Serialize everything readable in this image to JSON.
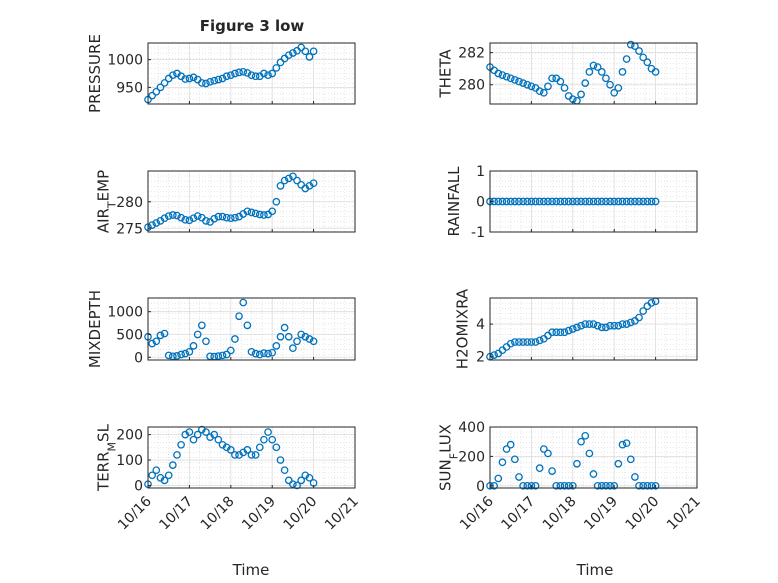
{
  "figure": {
    "title": "Figure 3 low",
    "xlabel": "Time",
    "marker_color": "#0072BD",
    "x_ticks": [
      "10/16",
      "10/17",
      "10/18",
      "10/19",
      "10/20",
      "10/21"
    ]
  },
  "chart_data": [
    {
      "type": "scatter",
      "ylabel": "PRESSURE",
      "ylim": [
        920,
        1030
      ],
      "yticks": [
        950,
        1000
      ],
      "grid": true,
      "x": [
        16.0,
        16.1,
        16.2,
        16.3,
        16.4,
        16.5,
        16.6,
        16.7,
        16.8,
        16.9,
        17.0,
        17.1,
        17.2,
        17.3,
        17.4,
        17.5,
        17.6,
        17.7,
        17.8,
        17.9,
        18.0,
        18.1,
        18.2,
        18.3,
        18.4,
        18.5,
        18.6,
        18.7,
        18.8,
        18.9,
        19.0,
        19.1,
        19.2,
        19.3,
        19.4,
        19.5,
        19.6,
        19.7,
        19.8,
        19.9,
        20.0
      ],
      "values": [
        928,
        935,
        942,
        950,
        958,
        966,
        972,
        975,
        970,
        965,
        966,
        968,
        964,
        958,
        957,
        960,
        962,
        964,
        966,
        970,
        972,
        975,
        977,
        978,
        976,
        972,
        970,
        970,
        975,
        972,
        975,
        985,
        995,
        1002,
        1008,
        1012,
        1016,
        1022,
        1015,
        1005,
        1015
      ]
    },
    {
      "type": "scatter",
      "ylabel": "THETA",
      "ylim": [
        278.8,
        282.6
      ],
      "yticks": [
        280,
        282
      ],
      "grid": true,
      "x": [
        16.0,
        16.1,
        16.2,
        16.3,
        16.4,
        16.5,
        16.6,
        16.7,
        16.8,
        16.9,
        17.0,
        17.1,
        17.2,
        17.3,
        17.4,
        17.5,
        17.6,
        17.7,
        17.8,
        17.9,
        18.0,
        18.1,
        18.2,
        18.3,
        18.4,
        18.5,
        18.6,
        18.7,
        18.8,
        18.9,
        19.0,
        19.1,
        19.2,
        19.3,
        19.4,
        19.5,
        19.6,
        19.7,
        19.8,
        19.9,
        20.0
      ],
      "values": [
        281.1,
        280.9,
        280.7,
        280.6,
        280.5,
        280.4,
        280.3,
        280.2,
        280.1,
        280.0,
        279.9,
        279.8,
        279.6,
        279.5,
        279.9,
        280.4,
        280.4,
        280.2,
        279.8,
        279.3,
        279.1,
        279.0,
        279.4,
        280.1,
        280.8,
        281.2,
        281.1,
        280.8,
        280.4,
        280.0,
        279.5,
        279.8,
        280.8,
        281.6,
        282.5,
        282.4,
        282.1,
        281.7,
        281.4,
        281.0,
        280.8
      ]
    },
    {
      "type": "scatter",
      "ylabel": "AIR_TEMP",
      "ylim": [
        274.3,
        285.8
      ],
      "yticks": [
        275,
        280
      ],
      "grid": true,
      "x": [
        16.0,
        16.1,
        16.2,
        16.3,
        16.4,
        16.5,
        16.6,
        16.7,
        16.8,
        16.9,
        17.0,
        17.1,
        17.2,
        17.3,
        17.4,
        17.5,
        17.6,
        17.7,
        17.8,
        17.9,
        18.0,
        18.1,
        18.2,
        18.3,
        18.4,
        18.5,
        18.6,
        18.7,
        18.8,
        18.9,
        19.0,
        19.1,
        19.2,
        19.3,
        19.4,
        19.5,
        19.6,
        19.7,
        19.8,
        19.9,
        20.0
      ],
      "values": [
        275.2,
        275.6,
        276.0,
        276.4,
        276.9,
        277.3,
        277.5,
        277.4,
        277.0,
        276.6,
        276.5,
        276.9,
        277.3,
        277.0,
        276.4,
        276.2,
        276.8,
        277.2,
        277.2,
        277.0,
        276.9,
        277.0,
        277.2,
        277.7,
        278.2,
        278.0,
        277.8,
        277.6,
        277.5,
        277.6,
        278.2,
        280.0,
        283.0,
        284.0,
        284.4,
        284.8,
        284.0,
        283.2,
        282.5,
        283.0,
        283.5
      ]
    },
    {
      "type": "scatter",
      "ylabel": "RAINFALL",
      "ylim": [
        -1,
        1
      ],
      "yticks": [
        -1,
        0,
        1
      ],
      "grid": true,
      "x": [
        16.0,
        16.1,
        16.2,
        16.3,
        16.4,
        16.5,
        16.6,
        16.7,
        16.8,
        16.9,
        17.0,
        17.1,
        17.2,
        17.3,
        17.4,
        17.5,
        17.6,
        17.7,
        17.8,
        17.9,
        18.0,
        18.1,
        18.2,
        18.3,
        18.4,
        18.5,
        18.6,
        18.7,
        18.8,
        18.9,
        19.0,
        19.1,
        19.2,
        19.3,
        19.4,
        19.5,
        19.6,
        19.7,
        19.8,
        19.9,
        20.0
      ],
      "values": [
        0,
        0,
        0,
        0,
        0,
        0,
        0,
        0,
        0,
        0,
        0,
        0,
        0,
        0,
        0,
        0,
        0,
        0,
        0,
        0,
        0,
        0,
        0,
        0,
        0,
        0,
        0,
        0,
        0,
        0,
        0,
        0,
        0,
        0,
        0,
        0,
        0,
        0,
        0,
        0,
        0
      ]
    },
    {
      "type": "scatter",
      "ylabel": "MIXDEPTH",
      "ylim": [
        -60,
        1300
      ],
      "yticks": [
        0,
        500,
        1000
      ],
      "grid": true,
      "x": [
        16.0,
        16.1,
        16.2,
        16.3,
        16.4,
        16.5,
        16.6,
        16.7,
        16.8,
        16.9,
        17.0,
        17.1,
        17.2,
        17.3,
        17.4,
        17.5,
        17.6,
        17.7,
        17.8,
        17.9,
        18.0,
        18.1,
        18.2,
        18.3,
        18.4,
        18.5,
        18.6,
        18.7,
        18.8,
        18.9,
        19.0,
        19.1,
        19.2,
        19.3,
        19.4,
        19.5,
        19.6,
        19.7,
        19.8,
        19.9,
        20.0
      ],
      "values": [
        450,
        300,
        350,
        480,
        520,
        40,
        20,
        30,
        60,
        80,
        120,
        250,
        500,
        700,
        350,
        20,
        15,
        25,
        40,
        60,
        150,
        400,
        900,
        1200,
        700,
        120,
        80,
        60,
        90,
        80,
        100,
        250,
        450,
        650,
        450,
        200,
        350,
        500,
        450,
        400,
        350
      ]
    },
    {
      "type": "scatter",
      "ylabel": "H2OMIXRA",
      "ylim": [
        1.8,
        5.6
      ],
      "yticks": [
        2,
        4
      ],
      "grid": true,
      "x": [
        16.0,
        16.1,
        16.2,
        16.3,
        16.4,
        16.5,
        16.6,
        16.7,
        16.8,
        16.9,
        17.0,
        17.1,
        17.2,
        17.3,
        17.4,
        17.5,
        17.6,
        17.7,
        17.8,
        17.9,
        18.0,
        18.1,
        18.2,
        18.3,
        18.4,
        18.5,
        18.6,
        18.7,
        18.8,
        18.9,
        19.0,
        19.1,
        19.2,
        19.3,
        19.4,
        19.5,
        19.6,
        19.7,
        19.8,
        19.9,
        20.0
      ],
      "values": [
        2.0,
        2.1,
        2.2,
        2.4,
        2.6,
        2.8,
        2.9,
        2.9,
        2.9,
        2.9,
        2.9,
        2.9,
        3.0,
        3.1,
        3.3,
        3.5,
        3.5,
        3.5,
        3.5,
        3.6,
        3.7,
        3.8,
        3.9,
        4.0,
        4.0,
        4.0,
        3.9,
        3.8,
        3.8,
        3.9,
        3.9,
        3.9,
        4.0,
        4.0,
        4.1,
        4.2,
        4.4,
        4.8,
        5.1,
        5.3,
        5.4
      ]
    },
    {
      "type": "scatter",
      "ylabel": "TERR_MSL",
      "ylim": [
        -10,
        230
      ],
      "yticks": [
        0,
        100,
        200
      ],
      "grid": true,
      "x": [
        16.0,
        16.1,
        16.2,
        16.3,
        16.4,
        16.5,
        16.6,
        16.7,
        16.8,
        16.9,
        17.0,
        17.1,
        17.2,
        17.3,
        17.4,
        17.5,
        17.6,
        17.7,
        17.8,
        17.9,
        18.0,
        18.1,
        18.2,
        18.3,
        18.4,
        18.5,
        18.6,
        18.7,
        18.8,
        18.9,
        19.0,
        19.1,
        19.2,
        19.3,
        19.4,
        19.5,
        19.6,
        19.7,
        19.8,
        19.9,
        20.0
      ],
      "values": [
        5,
        40,
        60,
        30,
        20,
        40,
        80,
        120,
        160,
        200,
        210,
        180,
        200,
        220,
        210,
        190,
        200,
        180,
        160,
        150,
        140,
        120,
        120,
        130,
        140,
        120,
        120,
        150,
        180,
        210,
        180,
        150,
        100,
        60,
        20,
        5,
        0,
        20,
        40,
        30,
        10
      ]
    },
    {
      "type": "scatter",
      "ylabel": "SUN_FLUX",
      "ylim": [
        -15,
        400
      ],
      "yticks": [
        0,
        200,
        400
      ],
      "grid": true,
      "x": [
        16.0,
        16.1,
        16.2,
        16.3,
        16.4,
        16.5,
        16.6,
        16.7,
        16.8,
        16.9,
        17.0,
        17.1,
        17.2,
        17.3,
        17.4,
        17.5,
        17.6,
        17.7,
        17.8,
        17.9,
        18.0,
        18.1,
        18.2,
        18.3,
        18.4,
        18.5,
        18.6,
        18.7,
        18.8,
        18.9,
        19.0,
        19.1,
        19.2,
        19.3,
        19.4,
        19.5,
        19.6,
        19.7,
        19.8,
        19.9,
        20.0
      ],
      "values": [
        0,
        0,
        50,
        160,
        250,
        280,
        180,
        60,
        0,
        0,
        0,
        0,
        120,
        250,
        220,
        100,
        0,
        0,
        0,
        0,
        0,
        150,
        300,
        340,
        220,
        80,
        0,
        0,
        0,
        0,
        0,
        150,
        280,
        290,
        180,
        60,
        0,
        0,
        0,
        0,
        0
      ]
    }
  ]
}
